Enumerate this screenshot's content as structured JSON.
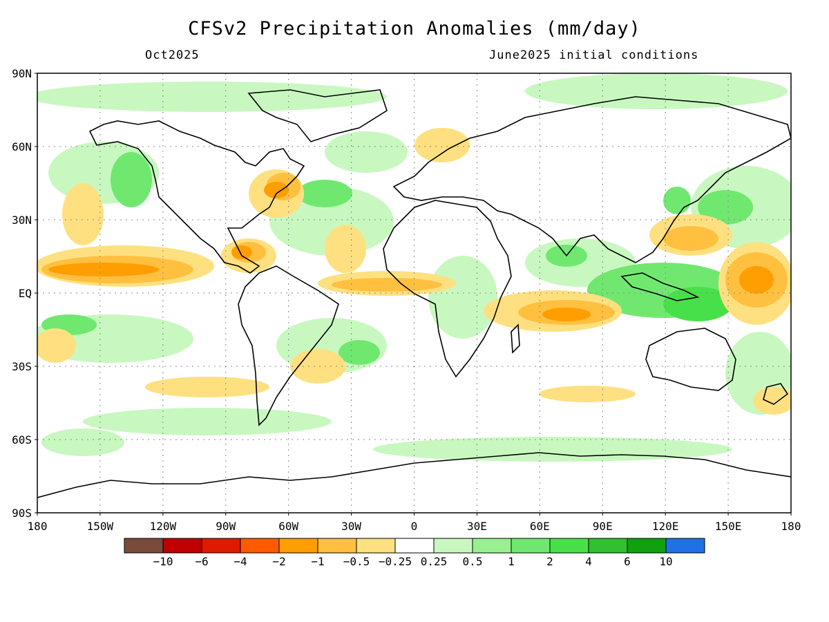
{
  "title": "CFSv2 Precipitation Anomalies (mm/day)",
  "subtitle_left": "Oct2025",
  "subtitle_right": "June2025 initial conditions",
  "lat_ticks": [
    "90N",
    "60N",
    "30N",
    "EQ",
    "30S",
    "60S",
    "90S"
  ],
  "lon_ticks": [
    "180",
    "150W",
    "120W",
    "90W",
    "60W",
    "30W",
    "0",
    "30E",
    "60E",
    "90E",
    "120E",
    "150E",
    "180"
  ],
  "legend": {
    "colors": [
      "#7a4a3a",
      "#c00000",
      "#e01a00",
      "#ff5a00",
      "#ff9e00",
      "#ffc040",
      "#ffe080",
      "#ffffff",
      "#c8f8c0",
      "#98f090",
      "#70e870",
      "#48e048",
      "#30c030",
      "#10a010",
      "#2070e8"
    ],
    "labels": [
      "-10",
      "-6",
      "-4",
      "-2",
      "-1",
      "-0.5",
      "-0.25",
      "0.25",
      "0.5",
      "1",
      "2",
      "4",
      "6",
      "10"
    ]
  },
  "colors": {
    "dry_light": "#ffe080",
    "dry_mid": "#ffc040",
    "dry_strong": "#ff9e00",
    "dry_max": "#ff5a00",
    "wet_light": "#c8f8c0",
    "wet_mid": "#98f090",
    "wet_strong": "#70e870",
    "wet_max": "#48e048"
  }
}
